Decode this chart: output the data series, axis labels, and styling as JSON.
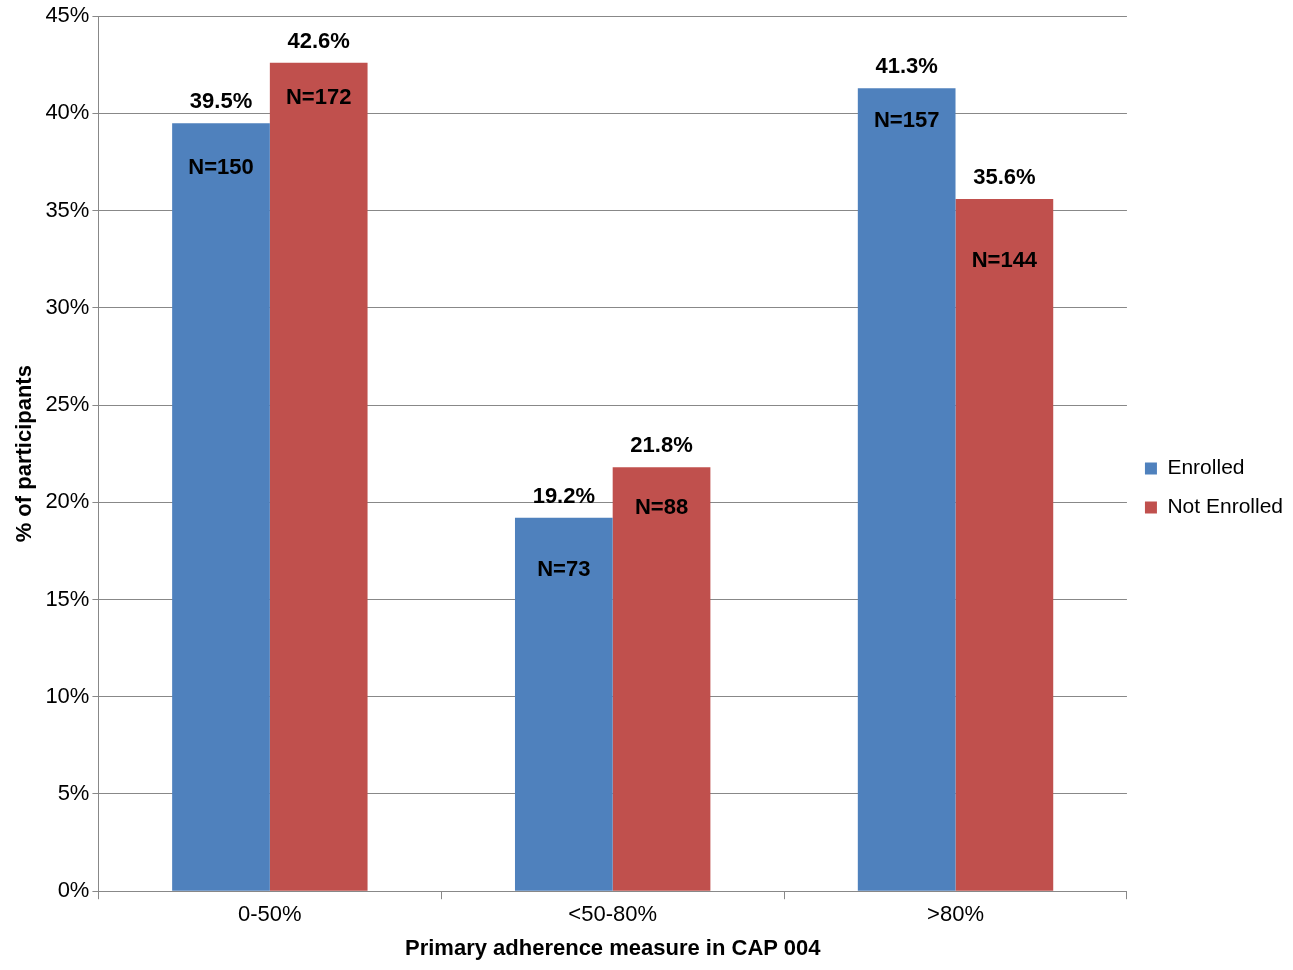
{
  "chart_data": {
    "type": "bar",
    "xlabel": "Primary adherence measure in CAP 004",
    "ylabel": "% of participants",
    "categories": [
      "0-50%",
      "<50-80%",
      ">80%"
    ],
    "series": [
      {
        "name": "Enrolled",
        "color": "#4f81bd",
        "values": [
          39.5,
          19.2,
          41.3
        ],
        "value_labels": [
          "39.5%",
          "19.2%",
          "41.3%"
        ]
      },
      {
        "name": "Not Enrolled",
        "color": "#c0504d",
        "values": [
          42.6,
          21.8,
          35.6
        ],
        "value_labels": [
          "42.6%",
          "21.8%",
          "35.6%"
        ]
      }
    ],
    "ylim": [
      0,
      45
    ],
    "yticks": [
      {
        "value": 0,
        "label": "0%"
      },
      {
        "value": 5,
        "label": "5%"
      },
      {
        "value": 10,
        "label": "10%"
      },
      {
        "value": 15,
        "label": "15%"
      },
      {
        "value": 20,
        "label": "20%"
      },
      {
        "value": 25,
        "label": "25%"
      },
      {
        "value": 30,
        "label": "30%"
      },
      {
        "value": 35,
        "label": "35%"
      },
      {
        "value": 40,
        "label": "40%"
      },
      {
        "value": 45,
        "label": "45%"
      }
    ],
    "grid": "y",
    "legend": "right",
    "annotations": [
      {
        "text": "N=150",
        "x": "0-50%",
        "y": 37.2
      },
      {
        "text": "N=172",
        "x": "0-50%",
        "y": 40.8
      },
      {
        "text": "N=73",
        "x": "<50-80%",
        "y": 16.5
      },
      {
        "text": "N=88",
        "x": "<50-80%",
        "y": 19.7
      },
      {
        "text": "N=157",
        "x": ">80%",
        "y": 39.6
      },
      {
        "text": "N=144",
        "x": ">80%",
        "y": 32.4
      }
    ]
  }
}
